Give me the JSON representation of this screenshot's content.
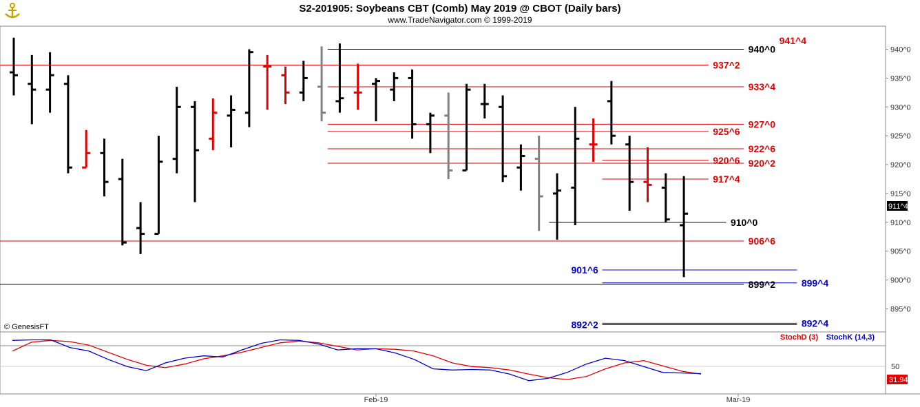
{
  "header": {
    "title": "S2-201905:  Soybeans CBT (Comb) May 2019 @ CBOT  (Daily bars)",
    "subtitle": "www.TradeNavigator.com © 1999-2019",
    "logo_icon": "anchor-logo-icon"
  },
  "copyright": "© GenesisFT",
  "colors": {
    "up": "#000000",
    "down": "#000000",
    "red_bar": "#e00000",
    "green_tick": "#00c000",
    "gray_bar": "#808080",
    "red_level": "#e00000",
    "blue_level": "#0000cc",
    "black_level": "#000000",
    "stoch_d": "#e00000",
    "stoch_k": "#0000cc"
  },
  "chart_data": {
    "type": "ohlc",
    "y_range": [
      891,
      944
    ],
    "y_ticks": [
      "940^0",
      "935^0",
      "930^0",
      "925^0",
      "920^0",
      "915^0",
      "910^0",
      "905^0",
      "900^0",
      "895^0"
    ],
    "x_labels": [
      {
        "label": "Feb-19",
        "index": 20
      },
      {
        "label": "Mar-19",
        "index": 40
      }
    ],
    "last_price_label": "911^4",
    "last_price": 911.5,
    "bars": [
      {
        "o": 936.0,
        "h": 942.0,
        "l": 932.0,
        "c": 935.5,
        "color": "black"
      },
      {
        "o": 934.0,
        "h": 939.0,
        "l": 927.0,
        "c": 933.0,
        "color": "black"
      },
      {
        "o": 933.0,
        "h": 939.5,
        "l": 929.0,
        "c": 935.5,
        "color": "black"
      },
      {
        "o": 934.0,
        "h": 935.5,
        "l": 918.5,
        "c": 919.5,
        "color": "black"
      },
      {
        "o": 919.5,
        "h": 926.0,
        "l": 919.5,
        "c": 922.0,
        "color": "red"
      },
      {
        "o": 922.0,
        "h": 924.5,
        "l": 914.5,
        "c": 917.0,
        "color": "black"
      },
      {
        "o": 917.5,
        "h": 921.0,
        "l": 906.0,
        "c": 906.5,
        "color": "black"
      },
      {
        "o": 909.0,
        "h": 913.5,
        "l": 904.5,
        "c": 908.0,
        "color": "black"
      },
      {
        "o": 908.0,
        "h": 925.0,
        "l": 908.0,
        "c": 920.5,
        "color": "black"
      },
      {
        "o": 921.0,
        "h": 933.5,
        "l": 918.5,
        "c": 930.0,
        "color": "black"
      },
      {
        "o": 930.0,
        "h": 931.0,
        "l": 913.5,
        "c": 922.5,
        "color": "black"
      },
      {
        "o": 924.5,
        "h": 931.5,
        "l": 922.5,
        "c": 929.0,
        "color": "red"
      },
      {
        "o": 928.5,
        "h": 932.0,
        "l": 923.0,
        "c": 929.5,
        "color": "black"
      },
      {
        "o": 929.0,
        "h": 940.0,
        "l": 926.5,
        "c": 939.5,
        "color": "black"
      },
      {
        "o": 937.0,
        "h": 939.0,
        "l": 929.5,
        "c": 937.0,
        "color": "red"
      },
      {
        "o": 935.5,
        "h": 937.0,
        "l": 930.5,
        "c": 932.5,
        "color": "red"
      },
      {
        "o": 932.5,
        "h": 938.0,
        "l": 931.0,
        "c": 935.0,
        "color": "black"
      },
      {
        "o": 933.5,
        "h": 940.5,
        "l": 927.5,
        "c": 929.0,
        "color": "gray"
      },
      {
        "o": 931.0,
        "h": 941.0,
        "l": 929.0,
        "c": 931.5,
        "color": "black"
      },
      {
        "o": 932.5,
        "h": 937.5,
        "l": 929.5,
        "c": 932.5,
        "color": "red"
      },
      {
        "o": 934.0,
        "h": 935.0,
        "l": 927.5,
        "c": 934.5,
        "color": "black"
      },
      {
        "o": 933.0,
        "h": 936.0,
        "l": 931.0,
        "c": 935.0,
        "color": "black"
      },
      {
        "o": 935.0,
        "h": 936.5,
        "l": 924.5,
        "c": 927.0,
        "color": "black"
      },
      {
        "o": 927.0,
        "h": 929.0,
        "l": 922.0,
        "c": 928.5,
        "color": "black"
      },
      {
        "o": 928.5,
        "h": 932.5,
        "l": 917.5,
        "c": 919.0,
        "color": "gray"
      },
      {
        "o": 919.0,
        "h": 934.0,
        "l": 919.0,
        "c": 933.0,
        "color": "black"
      },
      {
        "o": 930.5,
        "h": 934.0,
        "l": 928.0,
        "c": 930.5,
        "color": "black"
      },
      {
        "o": 930.0,
        "h": 932.0,
        "l": 917.0,
        "c": 918.0,
        "color": "black"
      },
      {
        "o": 919.5,
        "h": 923.5,
        "l": 915.5,
        "c": 921.5,
        "color": "black"
      },
      {
        "o": 921.0,
        "h": 925.0,
        "l": 908.5,
        "c": 914.5,
        "color": "gray"
      },
      {
        "o": 915.0,
        "h": 918.5,
        "l": 907.0,
        "c": 915.5,
        "color": "black"
      },
      {
        "o": 916.0,
        "h": 930.0,
        "l": 909.5,
        "c": 924.5,
        "color": "black"
      },
      {
        "o": 923.5,
        "h": 928.0,
        "l": 920.5,
        "c": 923.5,
        "color": "red"
      },
      {
        "o": 931.0,
        "h": 934.5,
        "l": 923.5,
        "c": 925.0,
        "color": "black"
      },
      {
        "o": 923.5,
        "h": 925.0,
        "l": 912.0,
        "c": 917.0,
        "color": "black"
      },
      {
        "o": 917.0,
        "h": 923.0,
        "l": 913.5,
        "c": 916.5,
        "color": "red"
      },
      {
        "o": 916.0,
        "h": 918.5,
        "l": 910.0,
        "c": 910.5,
        "color": "black"
      },
      {
        "o": 909.5,
        "h": 918.0,
        "l": 900.5,
        "c": 911.5,
        "color": "black"
      }
    ],
    "levels": [
      {
        "label": "940^0",
        "value": 940.0,
        "color": "black",
        "x0": 0.37,
        "x1": 0.84,
        "lx": 0.845
      },
      {
        "label": "937^2",
        "value": 937.25,
        "color": "red",
        "x0": 0.0,
        "x1": 0.8,
        "lx": 0.805
      },
      {
        "label": "933^4",
        "value": 933.5,
        "color": "red",
        "x0": 0.37,
        "x1": 0.84,
        "lx": 0.845
      },
      {
        "label": "927^0",
        "value": 927.0,
        "color": "red",
        "x0": 0.37,
        "x1": 0.84,
        "lx": 0.845
      },
      {
        "label": "925^6",
        "value": 925.75,
        "color": "red",
        "x0": 0.37,
        "x1": 0.8,
        "lx": 0.805
      },
      {
        "label": "922^6",
        "value": 922.75,
        "color": "red",
        "x0": 0.37,
        "x1": 0.84,
        "lx": 0.845
      },
      {
        "label": "920^6",
        "value": 920.75,
        "color": "red",
        "x0": 0.68,
        "x1": 0.8,
        "lx": 0.805
      },
      {
        "label": "920^2",
        "value": 920.25,
        "color": "red",
        "x0": 0.37,
        "x1": 0.84,
        "lx": 0.845
      },
      {
        "label": "917^4",
        "value": 917.5,
        "color": "red",
        "x0": 0.68,
        "x1": 0.8,
        "lx": 0.805
      },
      {
        "label": "910^0",
        "value": 910.0,
        "color": "black",
        "x0": 0.62,
        "x1": 0.82,
        "lx": 0.825
      },
      {
        "label": "906^6",
        "value": 906.75,
        "color": "red",
        "x0": 0.0,
        "x1": 0.84,
        "lx": 0.845
      },
      {
        "label": "901^6",
        "value": 901.75,
        "color": "blue",
        "x0": 0.68,
        "x1": 0.9,
        "lx": 0.645
      },
      {
        "label": "899^4",
        "value": 899.5,
        "color": "blue",
        "x0": 0.68,
        "x1": 0.9,
        "lx": 0.905
      },
      {
        "label": "899^2",
        "value": 899.25,
        "color": "black",
        "x0": 0.0,
        "x1": 0.84,
        "lx": 0.845
      },
      {
        "label": "892^2",
        "value": 892.25,
        "color": "blue",
        "x0": 0.68,
        "x1": 0.9,
        "lx": 0.645
      },
      {
        "label": "892^4",
        "value": 892.5,
        "color": "blue",
        "x0": 0.68,
        "x1": 0.9,
        "lx": 0.905
      },
      {
        "label": "941^4",
        "value": 941.5,
        "color": "red",
        "x0": 0.0,
        "x1": 0.0,
        "lx": 0.88
      }
    ],
    "stoch": {
      "label_d": "StochD (3)",
      "label_k": "StochK (14,3)",
      "tick_50": "50",
      "last_label": "31.94",
      "y_range": [
        0,
        100
      ],
      "d": [
        70,
        85,
        88,
        86,
        80,
        68,
        56,
        46,
        42,
        48,
        57,
        62,
        68,
        76,
        84,
        87,
        84,
        78,
        72,
        74,
        73,
        70,
        62,
        50,
        44,
        42,
        38,
        31,
        25,
        22,
        27,
        40,
        50,
        54,
        45,
        36,
        31
      ],
      "k": [
        88,
        89,
        89,
        76,
        70,
        56,
        44,
        37,
        50,
        58,
        62,
        60,
        72,
        83,
        89,
        88,
        82,
        72,
        74,
        74,
        67,
        56,
        40,
        38,
        39,
        38,
        31,
        20,
        24,
        34,
        48,
        58,
        54,
        44,
        34,
        33,
        32
      ]
    }
  }
}
